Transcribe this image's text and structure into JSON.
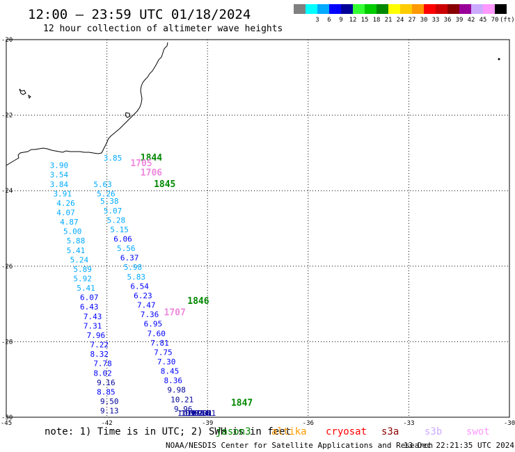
{
  "header": {
    "title": "12:00 – 23:59 UTC 01/18/2024",
    "subtitle": "12 hour collection of altimeter wave heights"
  },
  "legend": {
    "unit": "(ft)",
    "swatches": [
      {
        "color": "#808080",
        "label": ""
      },
      {
        "color": "#00ffff",
        "label": "3"
      },
      {
        "color": "#00aaff",
        "label": "6"
      },
      {
        "color": "#0000ff",
        "label": "9"
      },
      {
        "color": "#000099",
        "label": "12"
      },
      {
        "color": "#33ff33",
        "label": "15"
      },
      {
        "color": "#00cc00",
        "label": "18"
      },
      {
        "color": "#008800",
        "label": "21"
      },
      {
        "color": "#ffff00",
        "label": "24"
      },
      {
        "color": "#ffcc00",
        "label": "27"
      },
      {
        "color": "#ff9900",
        "label": "30"
      },
      {
        "color": "#ff0000",
        "label": "33"
      },
      {
        "color": "#cc0000",
        "label": "36"
      },
      {
        "color": "#880000",
        "label": "39"
      },
      {
        "color": "#990099",
        "label": "42"
      },
      {
        "color": "#ccaaff",
        "label": "45"
      },
      {
        "color": "#ff99ff",
        "label": "70"
      },
      {
        "color": "#000000",
        "label": ""
      }
    ]
  },
  "map": {
    "lon_range": [
      -45,
      -30
    ],
    "lat_range": [
      -30,
      -20
    ],
    "lon_ticks": [
      "-45",
      "-42",
      "-39",
      "-36",
      "-33",
      "-30"
    ],
    "lat_ticks": [
      "-20",
      "-22",
      "-24",
      "-26",
      "-28",
      "-30"
    ],
    "grid": true
  },
  "pass_times": [
    {
      "text": "1844",
      "lon": -41.0,
      "lat": -23.2,
      "color": "#008800"
    },
    {
      "text": "1845",
      "lon": -40.6,
      "lat": -23.9,
      "color": "#008800"
    },
    {
      "text": "1846",
      "lon": -39.6,
      "lat": -27.0,
      "color": "#008800"
    },
    {
      "text": "1847",
      "lon": -38.3,
      "lat": -29.7,
      "color": "#008800"
    },
    {
      "text": "1705",
      "lon": -41.3,
      "lat": -23.35,
      "color": "#ee88dd"
    },
    {
      "text": "1706",
      "lon": -41.0,
      "lat": -23.6,
      "color": "#ee88dd"
    },
    {
      "text": "1707",
      "lon": -40.3,
      "lat": -27.3,
      "color": "#ee88dd"
    }
  ],
  "observations": [
    {
      "v": "3.85",
      "lon": -42.1,
      "lat": -23.2
    },
    {
      "v": "3.90",
      "lon": -43.7,
      "lat": -23.4
    },
    {
      "v": "3.54",
      "lon": -43.7,
      "lat": -23.65
    },
    {
      "v": "3.84",
      "lon": -43.7,
      "lat": -23.9
    },
    {
      "v": "3.91",
      "lon": -43.6,
      "lat": -24.15
    },
    {
      "v": "4.26",
      "lon": -43.5,
      "lat": -24.4
    },
    {
      "v": "4.07",
      "lon": -43.5,
      "lat": -24.65
    },
    {
      "v": "4.87",
      "lon": -43.4,
      "lat": -24.9
    },
    {
      "v": "5.00",
      "lon": -43.3,
      "lat": -25.15
    },
    {
      "v": "5.88",
      "lon": -43.2,
      "lat": -25.4
    },
    {
      "v": "5.41",
      "lon": -43.2,
      "lat": -25.65
    },
    {
      "v": "5.24",
      "lon": -43.1,
      "lat": -25.9
    },
    {
      "v": "5.89",
      "lon": -43.0,
      "lat": -26.15
    },
    {
      "v": "5.92",
      "lon": -43.0,
      "lat": -26.4
    },
    {
      "v": "5.41",
      "lon": -42.9,
      "lat": -26.65
    },
    {
      "v": "6.07",
      "lon": -42.8,
      "lat": -26.9
    },
    {
      "v": "6.43",
      "lon": -42.8,
      "lat": -27.15
    },
    {
      "v": "7.43",
      "lon": -42.7,
      "lat": -27.4
    },
    {
      "v": "7.31",
      "lon": -42.7,
      "lat": -27.65
    },
    {
      "v": "7.96",
      "lon": -42.6,
      "lat": -27.9
    },
    {
      "v": "7.22",
      "lon": -42.5,
      "lat": -28.15
    },
    {
      "v": "8.32",
      "lon": -42.5,
      "lat": -28.4
    },
    {
      "v": "7.78",
      "lon": -42.4,
      "lat": -28.65
    },
    {
      "v": "8.02",
      "lon": -42.4,
      "lat": -28.9
    },
    {
      "v": "9.16",
      "lon": -42.3,
      "lat": -29.15
    },
    {
      "v": "8.85",
      "lon": -42.3,
      "lat": -29.4
    },
    {
      "v": "9.50",
      "lon": -42.2,
      "lat": -29.65
    },
    {
      "v": "9.13",
      "lon": -42.2,
      "lat": -29.9
    },
    {
      "v": "5.63",
      "lon": -42.4,
      "lat": -23.9
    },
    {
      "v": "5.26",
      "lon": -42.3,
      "lat": -24.15
    },
    {
      "v": "5.38",
      "lon": -42.2,
      "lat": -24.35
    },
    {
      "v": "5.07",
      "lon": -42.1,
      "lat": -24.6
    },
    {
      "v": "5.28",
      "lon": -42.0,
      "lat": -24.85
    },
    {
      "v": "5.15",
      "lon": -41.9,
      "lat": -25.1
    },
    {
      "v": "6.06",
      "lon": -41.8,
      "lat": -25.35
    },
    {
      "v": "5.56",
      "lon": -41.7,
      "lat": -25.6
    },
    {
      "v": "6.37",
      "lon": -41.6,
      "lat": -25.85
    },
    {
      "v": "5.98",
      "lon": -41.5,
      "lat": -26.1
    },
    {
      "v": "5.83",
      "lon": -41.4,
      "lat": -26.35
    },
    {
      "v": "6.54",
      "lon": -41.3,
      "lat": -26.6
    },
    {
      "v": "6.23",
      "lon": -41.2,
      "lat": -26.85
    },
    {
      "v": "7.47",
      "lon": -41.1,
      "lat": -27.1
    },
    {
      "v": "7.36",
      "lon": -41.0,
      "lat": -27.35
    },
    {
      "v": "6.95",
      "lon": -40.9,
      "lat": -27.6
    },
    {
      "v": "7.60",
      "lon": -40.8,
      "lat": -27.85
    },
    {
      "v": "7.81",
      "lon": -40.7,
      "lat": -28.1
    },
    {
      "v": "7.75",
      "lon": -40.6,
      "lat": -28.35
    },
    {
      "v": "7.30",
      "lon": -40.5,
      "lat": -28.6
    },
    {
      "v": "8.45",
      "lon": -40.4,
      "lat": -28.85
    },
    {
      "v": "8.36",
      "lon": -40.3,
      "lat": -29.1
    },
    {
      "v": "9.98",
      "lon": -40.2,
      "lat": -29.35
    },
    {
      "v": "10.21",
      "lon": -40.1,
      "lat": -29.6
    },
    {
      "v": "9.96",
      "lon": -40.0,
      "lat": -29.85
    },
    {
      "v": "11.17",
      "lon": -39.9,
      "lat": -30.1
    },
    {
      "v": "10.63",
      "lon": -39.8,
      "lat": -30.35
    },
    {
      "v": "10.20",
      "lon": -39.7,
      "lat": -30.6
    },
    {
      "v": "10.16",
      "lon": -39.6,
      "lat": -30.85
    },
    {
      "v": "9.64",
      "lon": -39.5,
      "lat": -31.1
    },
    {
      "v": "9.31",
      "lon": -39.4,
      "lat": -31.35
    },
    {
      "v": "9.41",
      "lon": -39.3,
      "lat": -31.6
    }
  ],
  "notes": {
    "note_text": "note: 1) Time is in UTC; 2) SWH is in feet",
    "satellites": [
      {
        "name": "jason3",
        "color": "#008800"
      },
      {
        "name": "altika",
        "color": "#ff9900"
      },
      {
        "name": "cryosat",
        "color": "#ff0000"
      },
      {
        "name": "s3a",
        "color": "#880000"
      },
      {
        "name": "s3b",
        "color": "#ccaaff"
      },
      {
        "name": "swot",
        "color": "#ff99ff"
      }
    ]
  },
  "footer": {
    "left": "NOAA/NESDIS Center for Satellite Applications and Research",
    "right": "13 Dec 22:21:35 UTC 2024"
  }
}
